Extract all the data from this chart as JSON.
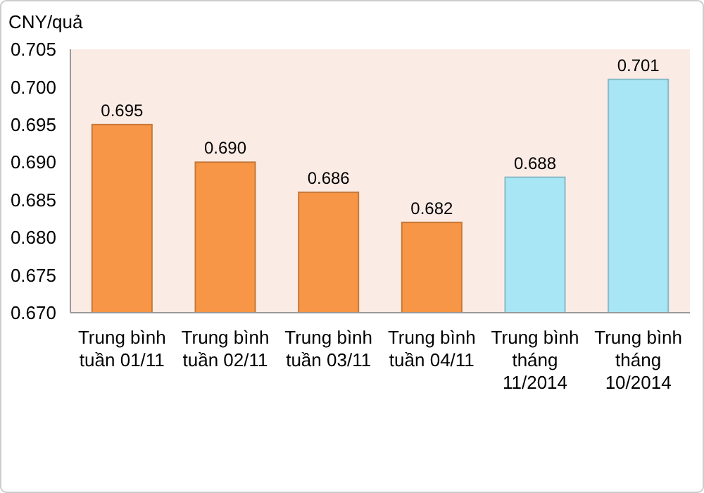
{
  "chart_data": {
    "type": "bar",
    "ylabel": "CNY/quả",
    "categories": [
      "Trung bình tuần 01/11",
      "Trung bình tuần 02/11",
      "Trung bình tuần 03/11",
      "Trung bình tuần 04/11",
      "Trung bình tháng 11/2014",
      "Trung bình tháng 10/2014"
    ],
    "values": [
      0.695,
      0.69,
      0.686,
      0.682,
      0.688,
      0.701
    ],
    "colors": [
      "#f79646",
      "#f79646",
      "#f79646",
      "#f79646",
      "#a9e6f5",
      "#a9e6f5"
    ],
    "ylim": [
      0.67,
      0.705
    ],
    "yticks": [
      {
        "value": 0.67,
        "label": "0.670"
      },
      {
        "value": 0.675,
        "label": "0.675"
      },
      {
        "value": 0.68,
        "label": "0.680"
      },
      {
        "value": 0.685,
        "label": "0.685"
      },
      {
        "value": 0.69,
        "label": "0.690"
      },
      {
        "value": 0.695,
        "label": "0.695"
      },
      {
        "value": 0.7,
        "label": "0.700"
      },
      {
        "value": 0.705,
        "label": "0.705"
      }
    ],
    "value_labels": [
      "0.695",
      "0.690",
      "0.686",
      "0.682",
      "0.688",
      "0.701"
    ],
    "grid": false
  }
}
